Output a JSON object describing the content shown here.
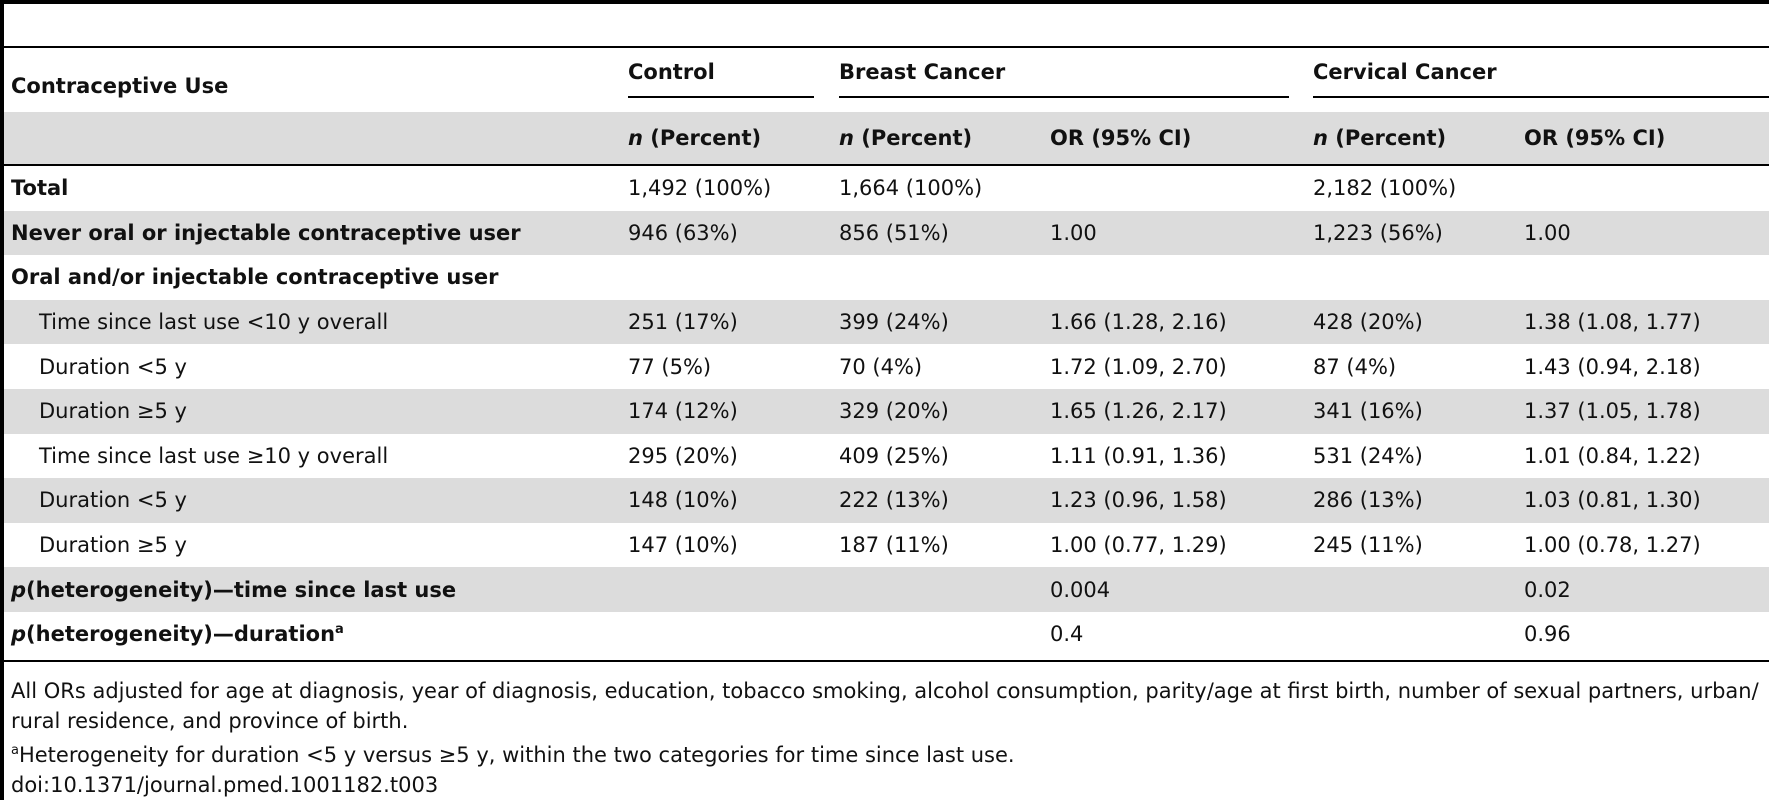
{
  "table": {
    "header": {
      "row_label": "Contraceptive Use",
      "groups": [
        "Control",
        "Breast Cancer",
        "Cervical Cancer"
      ],
      "n_pct_italic": "n",
      "n_pct_rest": " (Percent)",
      "or_label": "OR (95% CI)"
    },
    "rows": [
      {
        "label": "Total",
        "c_n": "1,492 (100%)",
        "b_n": "1,664 (100%)",
        "b_or": "",
        "v_n": "2,182 (100%)",
        "v_or": ""
      },
      {
        "label": "Never oral or injectable contraceptive user",
        "c_n": "946 (63%)",
        "b_n": "856 (51%)",
        "b_or": "1.00",
        "v_n": "1,223 (56%)",
        "v_or": "1.00"
      },
      {
        "label": "Oral and/or injectable contraceptive user",
        "c_n": "",
        "b_n": "",
        "b_or": "",
        "v_n": "",
        "v_or": ""
      },
      {
        "label": "Time since last use <10 y overall",
        "c_n": "251 (17%)",
        "b_n": "399 (24%)",
        "b_or": "1.66 (1.28, 2.16)",
        "v_n": "428 (20%)",
        "v_or": "1.38 (1.08, 1.77)"
      },
      {
        "label": "Duration <5 y",
        "c_n": "77 (5%)",
        "b_n": "70 (4%)",
        "b_or": "1.72 (1.09, 2.70)",
        "v_n": "87 (4%)",
        "v_or": "1.43 (0.94, 2.18)"
      },
      {
        "label": "Duration ≥5 y",
        "c_n": "174 (12%)",
        "b_n": "329 (20%)",
        "b_or": "1.65 (1.26, 2.17)",
        "v_n": "341 (16%)",
        "v_or": "1.37 (1.05, 1.78)"
      },
      {
        "label": "Time since last use ≥10 y overall",
        "c_n": "295 (20%)",
        "b_n": "409 (25%)",
        "b_or": "1.11 (0.91, 1.36)",
        "v_n": "531 (24%)",
        "v_or": "1.01 (0.84, 1.22)"
      },
      {
        "label": "Duration <5 y",
        "c_n": "148 (10%)",
        "b_n": "222 (13%)",
        "b_or": "1.23 (0.96, 1.58)",
        "v_n": "286 (13%)",
        "v_or": "1.03 (0.81, 1.30)"
      },
      {
        "label": "Duration ≥5 y",
        "c_n": "147 (10%)",
        "b_n": "187 (11%)",
        "b_or": "1.00 (0.77, 1.29)",
        "v_n": "245 (11%)",
        "v_or": "1.00 (0.78, 1.27)"
      },
      {
        "label_italic": "p",
        "label": "(heterogeneity)—time since last use",
        "c_n": "",
        "b_n": "",
        "b_or": "0.004",
        "v_n": "",
        "v_or": "0.02"
      },
      {
        "label_italic": "p",
        "label": "(heterogeneity)—duration",
        "label_sup": "a",
        "c_n": "",
        "b_n": "",
        "b_or": "0.4",
        "v_n": "",
        "v_or": "0.96"
      }
    ]
  },
  "notes": {
    "line1": "All ORs adjusted for age at diagnosis, year of diagnosis, education, tobacco smoking, alcohol consumption, parity/age at first birth, number of sexual partners, urban/",
    "line2": "rural residence, and province of birth.",
    "footnote_mark": "a",
    "footnote": "Heterogeneity for duration <5 y versus ≥5 y, within the two categories for time since last use.",
    "doi": "doi:10.1371/journal.pmed.1001182.t003"
  }
}
